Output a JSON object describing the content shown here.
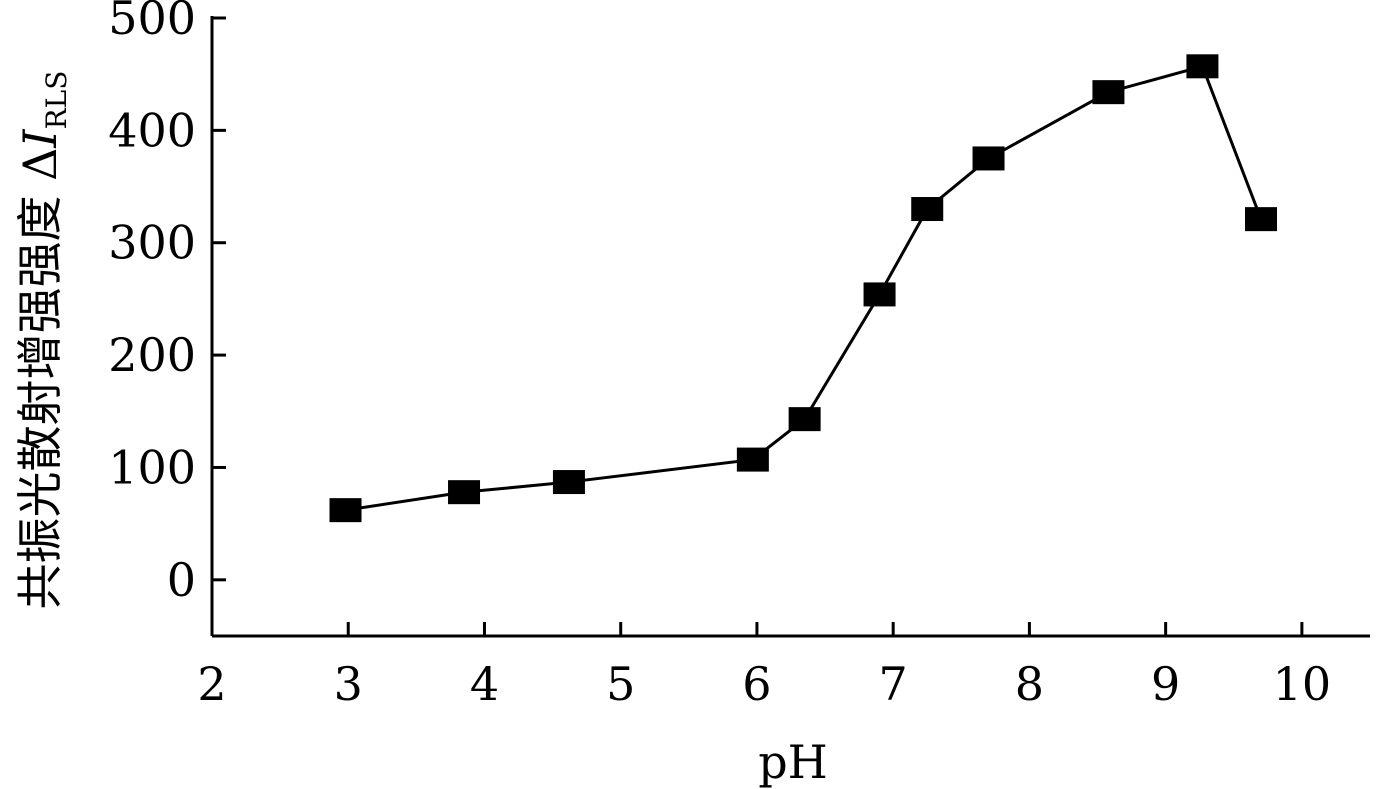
{
  "chart_data": {
    "type": "line",
    "xlabel": "pH",
    "ylabel": "共振光散射增强强度 Δ",
    "ylabel_italic": "I",
    "ylabel_sub": "RLS",
    "xlim": [
      2,
      10.5
    ],
    "ylim": [
      -50,
      500
    ],
    "xticks": [
      2,
      3,
      4,
      5,
      6,
      7,
      8,
      9,
      10
    ],
    "yticks": [
      0,
      100,
      200,
      300,
      400,
      500
    ],
    "grid": false,
    "marker": "square",
    "series": [
      {
        "x": [
          2.98,
          3.85,
          4.62,
          5.97,
          6.35,
          6.9,
          7.25,
          7.7,
          8.58,
          9.27,
          9.7
        ],
        "y": [
          62,
          78,
          87,
          107,
          143,
          254,
          330,
          375,
          434,
          457,
          321
        ]
      }
    ]
  }
}
